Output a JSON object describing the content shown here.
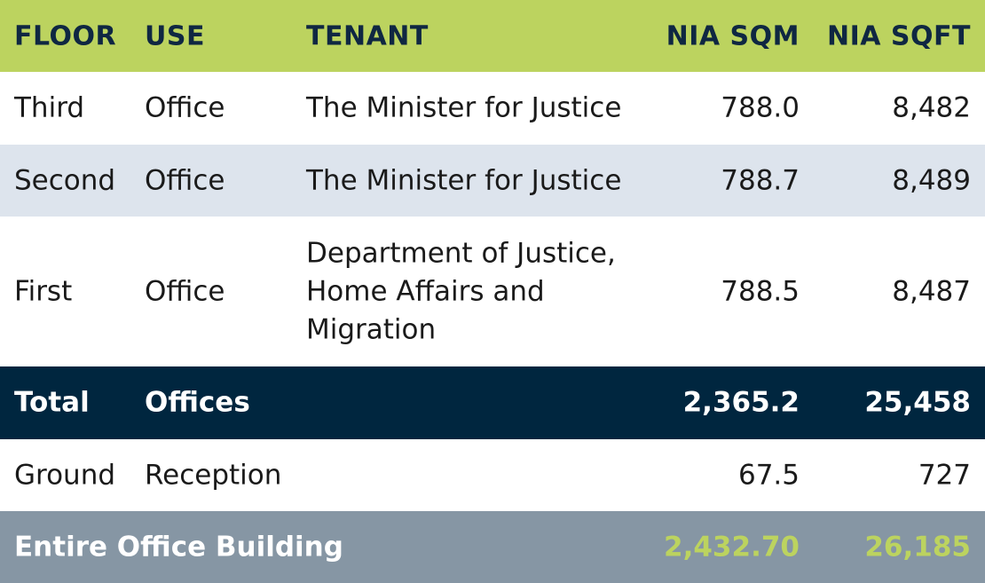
{
  "header": {
    "floor": "FLOOR",
    "use": "USE",
    "tenant": "TENANT",
    "nia_sqm": "NIA SQM",
    "nia_sqft": "NIA SQFT"
  },
  "rows": [
    {
      "floor": "Third",
      "use": "Office",
      "tenant": "The Minister for Justice",
      "nia_sqm": "788.0",
      "nia_sqft": "8,482"
    },
    {
      "floor": "Second",
      "use": "Office",
      "tenant": "The Minister for Justice",
      "nia_sqm": "788.7",
      "nia_sqft": "8,489"
    },
    {
      "floor": "First",
      "use": "Office",
      "tenant": "Department of Justice, Home Affairs and Migration",
      "nia_sqm": "788.5",
      "nia_sqft": "8,487"
    }
  ],
  "total": {
    "floor": "Total",
    "use": "Offices",
    "nia_sqm": "2,365.2",
    "nia_sqft": "25,458"
  },
  "ground": {
    "floor": "Ground",
    "use": "Reception",
    "nia_sqm": "67.5",
    "nia_sqft": "727"
  },
  "entire": {
    "label": "Entire Office Building",
    "nia_sqm": "2,432.70",
    "nia_sqft": "26,185"
  },
  "colors": {
    "header_bg": "#bcd35f",
    "header_text": "#0f2742",
    "alt_row_bg": "#dde4ed",
    "total_bg": "#00263f",
    "entire_bg": "#8696a4",
    "accent": "#bcd35f"
  }
}
